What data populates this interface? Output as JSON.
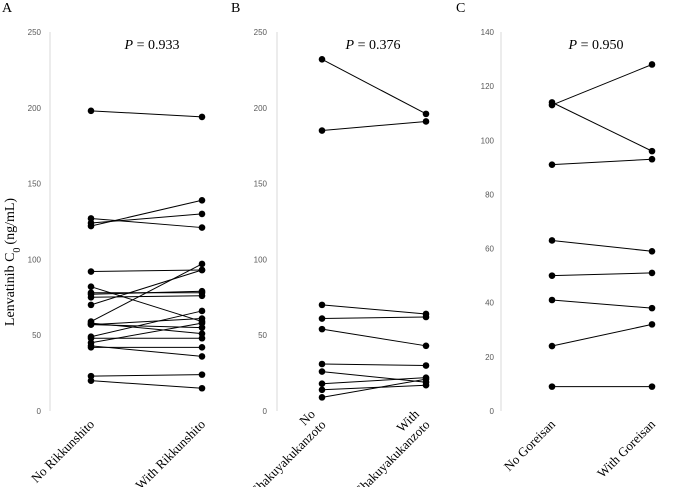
{
  "chart_data": [
    {
      "type": "scatter",
      "panel_letter": "A",
      "p_label": "P",
      "p_value": "= 0.933",
      "ylabel": "Lenvatinib C",
      "ylabel_sub": "0",
      "ylabel_unit": "(ng/mL)",
      "ylim": [
        0,
        250
      ],
      "y_ticks": [
        0,
        50,
        100,
        150,
        200,
        250
      ],
      "categories": [
        [
          "No Rikkunshito"
        ],
        [
          "With Rikkunshito"
        ]
      ],
      "pairs": [
        [
          198,
          194
        ],
        [
          127,
          121
        ],
        [
          124,
          130
        ],
        [
          122,
          139
        ],
        [
          92,
          93
        ],
        [
          82,
          59
        ],
        [
          78,
          78
        ],
        [
          77,
          79
        ],
        [
          75,
          76
        ],
        [
          70,
          93
        ],
        [
          59,
          97
        ],
        [
          58,
          51
        ],
        [
          57,
          61
        ],
        [
          57,
          55
        ],
        [
          49,
          66
        ],
        [
          48,
          48
        ],
        [
          45,
          58
        ],
        [
          43,
          36
        ],
        [
          42,
          42
        ],
        [
          23,
          24
        ],
        [
          20,
          15
        ]
      ]
    },
    {
      "type": "scatter",
      "panel_letter": "B",
      "p_label": "P",
      "p_value": "= 0.376",
      "ylim": [
        0,
        250
      ],
      "y_ticks": [
        0,
        50,
        100,
        150,
        200,
        250
      ],
      "categories": [
        [
          "No",
          "Shakuyakukanzoto"
        ],
        [
          "With",
          "Shakuyakukanzoto"
        ]
      ],
      "pairs": [
        [
          232,
          196
        ],
        [
          185,
          191
        ],
        [
          70,
          64
        ],
        [
          61,
          62
        ],
        [
          54,
          43
        ],
        [
          31,
          30
        ],
        [
          26,
          19
        ],
        [
          18,
          22
        ],
        [
          14,
          17
        ],
        [
          9,
          21
        ]
      ]
    },
    {
      "type": "scatter",
      "panel_letter": "C",
      "p_label": "P",
      "p_value": "= 0.950",
      "ylim": [
        0,
        140
      ],
      "y_ticks": [
        0,
        20,
        40,
        60,
        80,
        100,
        120,
        140
      ],
      "categories": [
        [
          "No Goreisan"
        ],
        [
          "With Goreisan"
        ]
      ],
      "pairs": [
        [
          114,
          96
        ],
        [
          113,
          128
        ],
        [
          91,
          93
        ],
        [
          63,
          59
        ],
        [
          50,
          51
        ],
        [
          41,
          38
        ],
        [
          24,
          32
        ],
        [
          9,
          9
        ]
      ]
    }
  ]
}
